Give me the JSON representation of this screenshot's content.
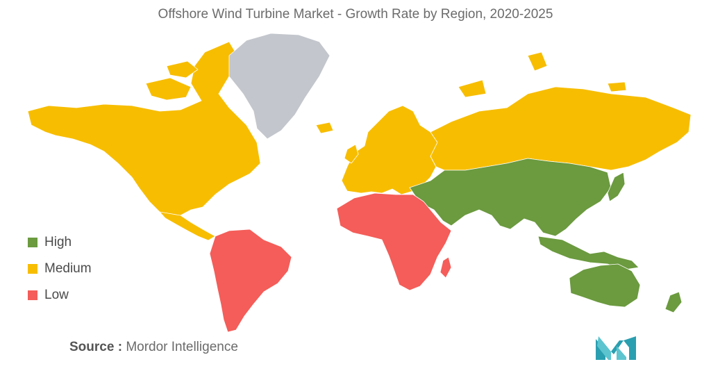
{
  "title": "Offshore Wind Turbine Market - Growth Rate by Region, 2020-2025",
  "legend": [
    {
      "label": "High",
      "color": "#6b9a3f"
    },
    {
      "label": "Medium",
      "color": "#f7bd00"
    },
    {
      "label": "Low",
      "color": "#f45d59"
    }
  ],
  "no_data_color": "#c3c6cc",
  "regions": [
    {
      "name": "North America",
      "category": "Medium"
    },
    {
      "name": "Greenland",
      "category": "No data"
    },
    {
      "name": "Europe",
      "category": "Medium"
    },
    {
      "name": "Russia",
      "category": "Medium"
    },
    {
      "name": "Asia-Pacific",
      "category": "High"
    },
    {
      "name": "Middle East",
      "category": "High"
    },
    {
      "name": "Africa",
      "category": "Low"
    },
    {
      "name": "South America",
      "category": "Low"
    }
  ],
  "source": {
    "label": "Source :",
    "value": "Mordor Intelligence"
  },
  "logo_icon": "mordor-intelligence-logo-icon"
}
